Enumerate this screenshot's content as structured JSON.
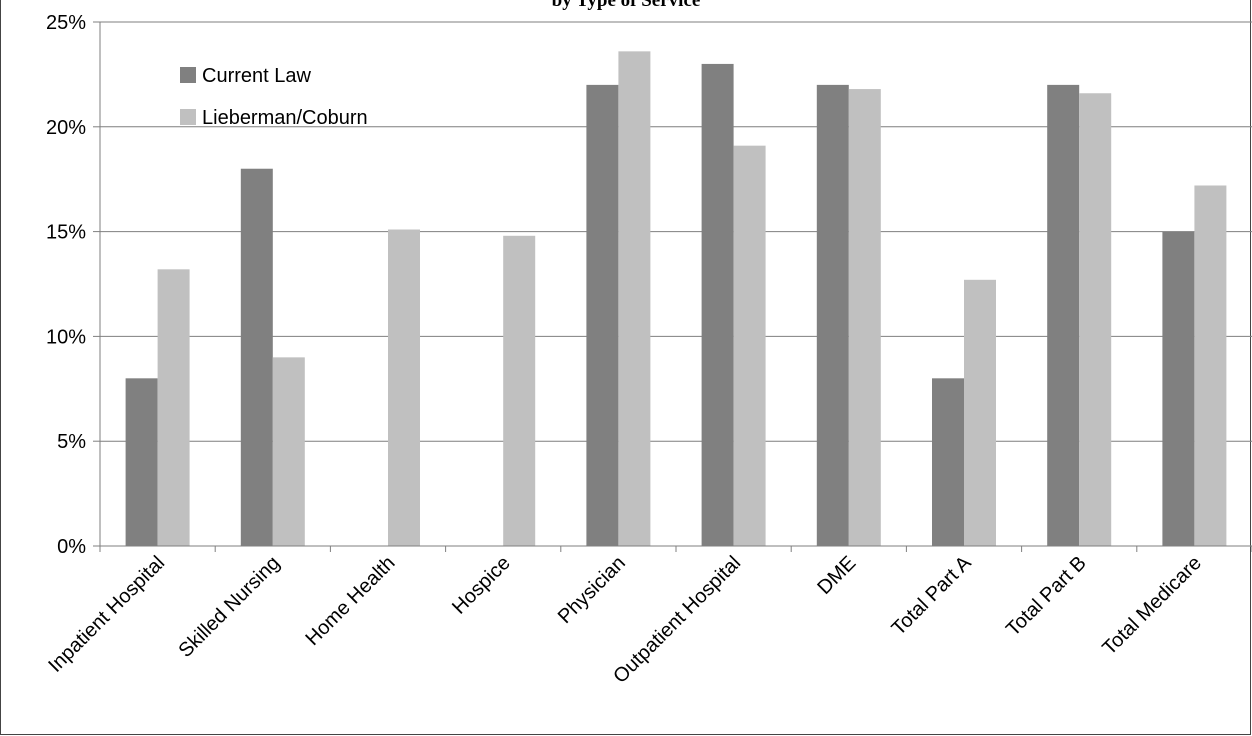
{
  "chart_data": {
    "type": "bar",
    "title": "by Type of Service",
    "xlabel": "",
    "ylabel": "",
    "ylim": [
      0,
      0.25
    ],
    "yticks": [
      0,
      0.05,
      0.1,
      0.15,
      0.2,
      0.25
    ],
    "ytick_labels": [
      "0%",
      "5%",
      "10%",
      "15%",
      "20%",
      "25%"
    ],
    "grid": "horizontal",
    "legend_position": "top-left",
    "categories": [
      "Inpatient Hospital",
      "Skilled Nursing",
      "Home Health",
      "Hospice",
      "Physician",
      "Outpatient Hospital",
      "DME",
      "Total Part A",
      "Total Part B",
      "Total Medicare"
    ],
    "series": [
      {
        "name": "Current Law",
        "color": "#808080",
        "values": [
          0.08,
          0.18,
          0,
          0,
          0.22,
          0.23,
          0.22,
          0.08,
          0.22,
          0.15
        ]
      },
      {
        "name": "Lieberman/Coburn",
        "color": "#c0c0c0",
        "values": [
          0.132,
          0.09,
          0.151,
          0.148,
          0.236,
          0.191,
          0.218,
          0.127,
          0.216,
          0.172
        ]
      }
    ]
  }
}
